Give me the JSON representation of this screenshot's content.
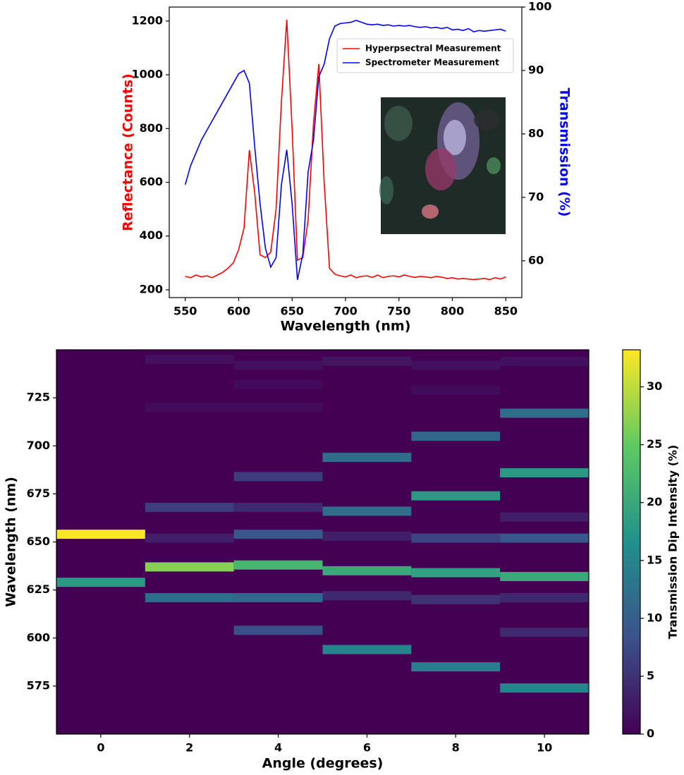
{
  "chart_data": [
    {
      "type": "line",
      "xlabel": "Wavelength (nm)",
      "ylabel": "Reflectance (Counts)",
      "y2label": "Transmission (%)",
      "x": [
        550,
        555,
        560,
        565,
        570,
        575,
        580,
        585,
        590,
        595,
        600,
        605,
        610,
        615,
        620,
        625,
        630,
        635,
        640,
        645,
        650,
        655,
        660,
        665,
        670,
        675,
        680,
        685,
        690,
        695,
        700,
        705,
        710,
        715,
        720,
        725,
        730,
        735,
        740,
        745,
        750,
        755,
        760,
        765,
        770,
        775,
        780,
        785,
        790,
        795,
        800,
        805,
        810,
        815,
        820,
        825,
        830,
        835,
        840,
        845,
        850
      ],
      "series": [
        {
          "name": "Hyperpsectral Measurement",
          "color": "#ff0000",
          "values": [
            250,
            245,
            255,
            248,
            252,
            245,
            255,
            265,
            280,
            300,
            350,
            430,
            720,
            560,
            330,
            320,
            340,
            500,
            900,
            1205,
            800,
            310,
            320,
            460,
            820,
            1040,
            600,
            280,
            258,
            252,
            248,
            255,
            245,
            250,
            252,
            246,
            255,
            245,
            250,
            252,
            248,
            255,
            250,
            246,
            250,
            248,
            245,
            250,
            247,
            242,
            245,
            240,
            242,
            240,
            238,
            240,
            242,
            238,
            245,
            240,
            248
          ]
        },
        {
          "name": "Spectrometer Measurement",
          "color": "#0000ff",
          "axis": "y2",
          "values": [
            72,
            75,
            77,
            79,
            80.5,
            82,
            83.5,
            85,
            86.5,
            88,
            89.5,
            90,
            88,
            78,
            69,
            62,
            59,
            60.5,
            72,
            77.5,
            69,
            57,
            61,
            74,
            79,
            89,
            91,
            95,
            97,
            97.4,
            97.5,
            97.6,
            97.9,
            97.6,
            97.3,
            97.2,
            97.3,
            97.1,
            97.2,
            97.0,
            97.1,
            97.0,
            97.1,
            96.9,
            96.8,
            96.9,
            96.7,
            96.8,
            96.6,
            96.8,
            96.4,
            96.5,
            96.3,
            96.6,
            96.1,
            96.3,
            96.2,
            96.3,
            96.4,
            96.5,
            96.2
          ]
        }
      ],
      "xlim": [
        535,
        865
      ],
      "ylim": [
        171,
        1252
      ],
      "y2lim": [
        54.2,
        100
      ],
      "xticks": [
        550,
        600,
        650,
        700,
        750,
        800,
        850
      ],
      "yticks": [
        200,
        400,
        600,
        800,
        1000,
        1200
      ],
      "y2ticks": [
        60,
        70,
        80,
        90,
        100
      ],
      "legend": "upper right"
    },
    {
      "type": "heatmap",
      "xlabel": "Angle (degrees)",
      "ylabel": "Wavelength (nm)",
      "colorbar_label": "Transmission Dip Intensity (%)",
      "colormap": "viridis",
      "columns": [
        {
          "angle": 0,
          "wavelengths": [
            654,
            629
          ],
          "values": [
            33,
            18
          ]
        },
        {
          "angle": 2,
          "wavelengths": [
            745,
            720,
            668,
            652,
            637,
            621
          ],
          "values": [
            1.5,
            1,
            6,
            3,
            27,
            12
          ]
        },
        {
          "angle": 4,
          "wavelengths": [
            742,
            732,
            720,
            684,
            668,
            654,
            638,
            621,
            604
          ],
          "values": [
            1.5,
            1,
            1,
            6,
            4,
            9,
            22,
            11,
            8
          ]
        },
        {
          "angle": 6,
          "wavelengths": [
            744,
            694,
            666,
            653,
            635,
            622,
            594
          ],
          "values": [
            2,
            12,
            12,
            3,
            20,
            4,
            15
          ]
        },
        {
          "angle": 8,
          "wavelengths": [
            742,
            729,
            705,
            674,
            652,
            634,
            620,
            585
          ],
          "values": [
            1.5,
            1,
            11,
            18,
            7,
            19,
            5,
            14
          ]
        },
        {
          "angle": 10,
          "wavelengths": [
            744,
            717,
            686,
            663,
            652,
            632,
            621,
            603,
            574
          ],
          "values": [
            1.5,
            12,
            18,
            3,
            9,
            20,
            4,
            4,
            15
          ]
        }
      ],
      "xlim": [
        -1,
        11
      ],
      "ylim": [
        550,
        750
      ],
      "clim": [
        0,
        33.2
      ],
      "xticks": [
        0,
        2,
        4,
        6,
        8,
        10
      ],
      "yticks": [
        575,
        600,
        625,
        650,
        675,
        700,
        725
      ],
      "cticks": [
        0,
        5,
        10,
        15,
        20,
        25,
        30
      ]
    }
  ]
}
